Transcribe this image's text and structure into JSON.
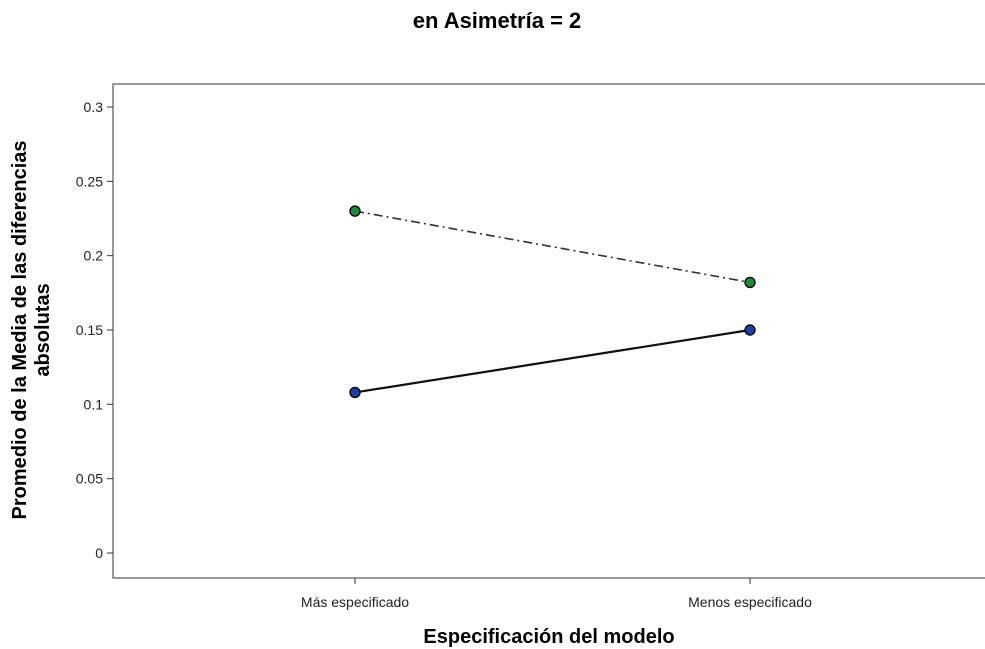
{
  "chart_data": {
    "type": "line",
    "title": "en Asimetría = 2",
    "xlabel": "Especificación del modelo",
    "ylabel_lines": [
      "Promedio de la Media de las diferencias",
      "absolutas"
    ],
    "categories": [
      "Más especificado",
      "Menos especificado"
    ],
    "ylim": [
      0,
      0.3
    ],
    "yticks": [
      "0",
      "0.05",
      "0.1",
      "0.15",
      "0.2",
      "0.25",
      "0.3"
    ],
    "grid": false,
    "series": [
      {
        "values": [
          0.23,
          0.182
        ],
        "line_style": "dash-dot",
        "marker_color": "#1e8a3c",
        "line_color": "#333333"
      },
      {
        "values": [
          0.108,
          0.15
        ],
        "line_style": "solid",
        "marker_color": "#1c3fa3",
        "line_color": "#111111"
      }
    ]
  }
}
